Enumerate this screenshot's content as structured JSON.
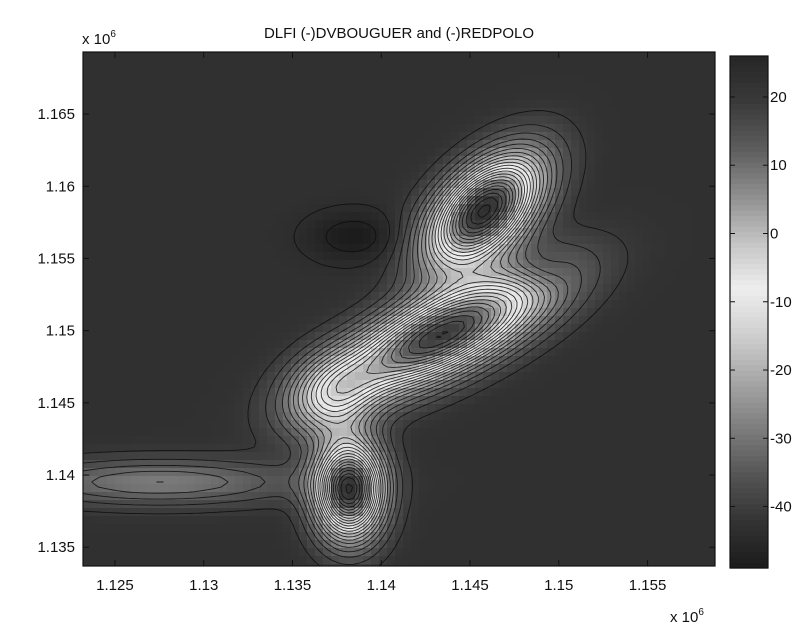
{
  "chart_data": {
    "type": "heatmap",
    "title": "DLFI (-)DVBOUGUER and (-)REDPOLO",
    "x_exponent_label": "x 10",
    "x_exponent_power": "6",
    "y_exponent_label": "x 10",
    "y_exponent_power": "6",
    "xlim": [
      1.1232,
      1.1588
    ],
    "ylim": [
      1.1337,
      1.1693
    ],
    "x_ticks": [
      {
        "value": 1.125,
        "label": "1.125"
      },
      {
        "value": 1.13,
        "label": "1.13"
      },
      {
        "value": 1.135,
        "label": "1.135"
      },
      {
        "value": 1.14,
        "label": "1.14"
      },
      {
        "value": 1.145,
        "label": "1.145"
      },
      {
        "value": 1.15,
        "label": "1.15"
      },
      {
        "value": 1.155,
        "label": "1.155"
      }
    ],
    "y_ticks": [
      {
        "value": 1.135,
        "label": "1.135"
      },
      {
        "value": 1.14,
        "label": "1.14"
      },
      {
        "value": 1.145,
        "label": "1.145"
      },
      {
        "value": 1.15,
        "label": "1.15"
      },
      {
        "value": 1.155,
        "label": "1.155"
      },
      {
        "value": 1.16,
        "label": "1.16"
      },
      {
        "value": 1.165,
        "label": "1.165"
      }
    ],
    "colorbar": {
      "min": -49,
      "max": 26,
      "ticks": [
        {
          "value": 20,
          "label": "20"
        },
        {
          "value": 10,
          "label": "10"
        },
        {
          "value": 0,
          "label": "0"
        },
        {
          "value": -10,
          "label": "-10"
        },
        {
          "value": -20,
          "label": "-20"
        },
        {
          "value": -30,
          "label": "-30"
        },
        {
          "value": -40,
          "label": "-40"
        }
      ]
    },
    "colormap": [
      "#1b1b1b",
      "#333333",
      "#555555",
      "#7d7d7d",
      "#a6a6a6",
      "#cfcfcf",
      "#eeeeee",
      "#c4c4c4",
      "#8e8e8e",
      "#5d5d5d",
      "#3a3a3a",
      "#262626"
    ],
    "background_level": -43,
    "anomalies": [
      {
        "x": 1.1434,
        "y": 1.1497,
        "sx": 0.0017,
        "sy": 0.0046,
        "rot": -58,
        "amp": 62
      },
      {
        "x": 1.1458,
        "y": 1.1583,
        "sx": 0.0016,
        "sy": 0.003,
        "rot": -35,
        "amp": 66
      },
      {
        "x": 1.1382,
        "y": 1.139,
        "sx": 0.0013,
        "sy": 0.0023,
        "rot": 0,
        "amp": 64
      },
      {
        "x": 1.1372,
        "y": 1.1455,
        "sx": 0.0016,
        "sy": 0.002,
        "rot": -30,
        "amp": 22
      },
      {
        "x": 1.1275,
        "y": 1.1395,
        "sx": 0.0055,
        "sy": 0.0011,
        "rot": 0,
        "amp": 14
      },
      {
        "x": 1.1385,
        "y": 1.1565,
        "sx": 0.0018,
        "sy": 0.0012,
        "rot": 0,
        "amp": -6
      },
      {
        "x": 1.149,
        "y": 1.154,
        "sx": 0.0012,
        "sy": 0.001,
        "rot": 0,
        "amp": -6
      }
    ],
    "contour_step": 3
  }
}
